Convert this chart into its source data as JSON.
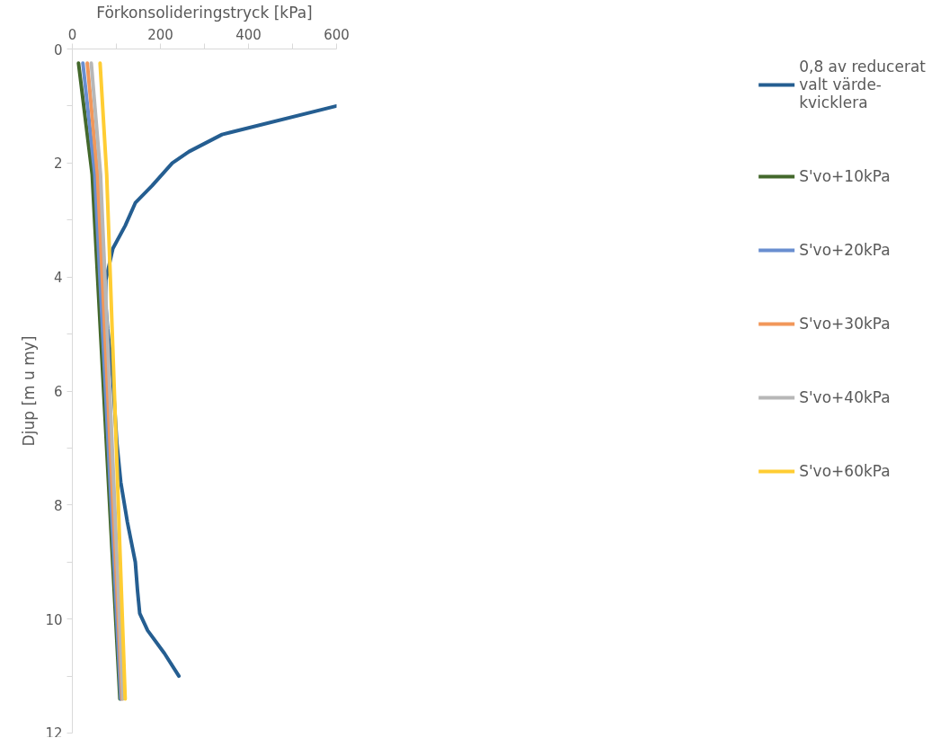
{
  "chart_data": {
    "type": "line",
    "xlabel": "Förkonsolideringstryck [kPa]",
    "ylabel": "Djup [m u my]",
    "xlim": [
      0,
      600
    ],
    "xticks": [
      0,
      200,
      400,
      600
    ],
    "ylim": [
      12,
      0
    ],
    "yticks": [
      0,
      2,
      4,
      6,
      8,
      10,
      12
    ],
    "grid": false,
    "legend": "right",
    "marker": "none",
    "line_style": "solid",
    "series": [
      {
        "name": "0,8 av reducerat valt värde-kvicklera",
        "color": "#255e91",
        "x": [
          600,
          340,
          265,
          227,
          181,
          143,
          120,
          92,
          76,
          75,
          80,
          92,
          101,
          110,
          125,
          143,
          148,
          153,
          171,
          209,
          242
        ],
        "values": [
          1.0,
          1.5,
          1.8,
          2.0,
          2.4,
          2.7,
          3.1,
          3.5,
          4.05,
          4.4,
          4.9,
          5.8,
          6.9,
          7.6,
          8.3,
          9.0,
          9.5,
          9.9,
          10.2,
          10.6,
          11.0
        ]
      },
      {
        "name": "S'vo+10kPa",
        "color": "#43682b",
        "x": [
          14,
          45,
          108
        ],
        "values": [
          0.25,
          2.2,
          11.4
        ]
      },
      {
        "name": "S'vo+20kPa",
        "color": "#698ed0",
        "x": [
          24,
          51,
          110
        ],
        "values": [
          0.25,
          2.2,
          11.4
        ]
      },
      {
        "name": "S'vo+30kPa",
        "color": "#f1975a",
        "x": [
          34,
          57,
          113
        ],
        "values": [
          0.25,
          2.2,
          11.4
        ]
      },
      {
        "name": "S'vo+40kPa",
        "color": "#b7b7b7",
        "x": [
          43,
          64,
          115
        ],
        "values": [
          0.25,
          2.2,
          11.4
        ]
      },
      {
        "name": "S'vo+60kPa",
        "color": "#ffcd33",
        "x": [
          63,
          78,
          120
        ],
        "values": [
          0.25,
          2.2,
          11.4
        ]
      }
    ]
  }
}
